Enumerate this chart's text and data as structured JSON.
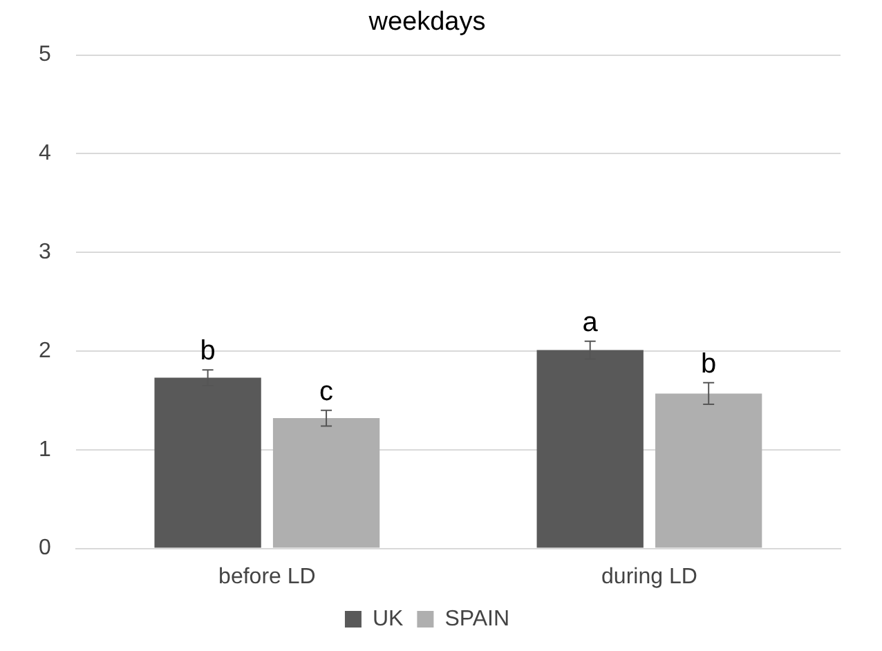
{
  "chart_data": {
    "type": "bar",
    "title": "weekdays",
    "categories": [
      "before LD",
      "during LD"
    ],
    "series": [
      {
        "name": "UK",
        "color": "#595959",
        "values": [
          1.73,
          2.01
        ],
        "errors": [
          0.08,
          0.09
        ]
      },
      {
        "name": "SPAIN",
        "color": "#afafaf",
        "values": [
          1.32,
          1.57
        ],
        "errors": [
          0.08,
          0.11
        ]
      }
    ],
    "ylim": [
      0,
      5
    ],
    "yticks": [
      0,
      1,
      2,
      3,
      4,
      5
    ],
    "grid": "y",
    "legend": "bottom",
    "annotations": [
      {
        "text": "b",
        "x": "before LD",
        "y": 1.73
      },
      {
        "text": "c",
        "x": "before LD",
        "y": 1.32
      },
      {
        "text": "a",
        "x": "during LD",
        "y": 2.01
      },
      {
        "text": "b",
        "x": "during LD",
        "y": 1.57
      }
    ]
  }
}
